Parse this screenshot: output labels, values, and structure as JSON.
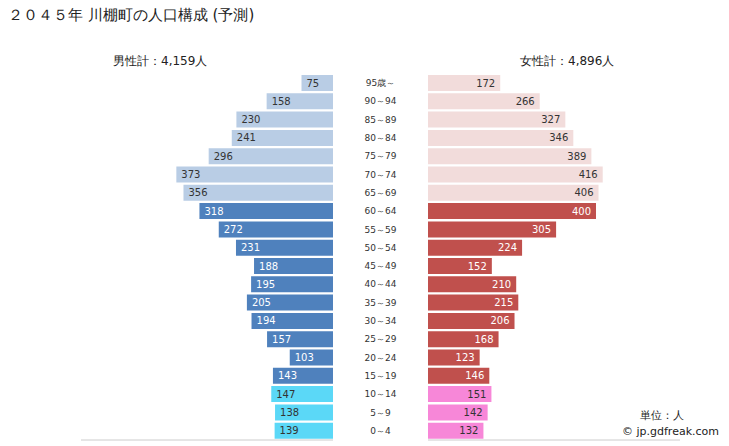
{
  "chart_data": {
    "type": "bar",
    "title": "２０４５年 川棚町の人口構成 (予測)",
    "orientation": "horizontal",
    "data_labels": true,
    "tick_labels": "y",
    "xlim": [
      0,
      600
    ],
    "categories": [
      "95歳～",
      "90～94",
      "85～89",
      "80～84",
      "75～79",
      "70～74",
      "65～69",
      "60～64",
      "55～59",
      "50～54",
      "45～49",
      "40～44",
      "35～39",
      "30～34",
      "25～29",
      "20～24",
      "15～19",
      "10～14",
      "5～9",
      "0～4"
    ],
    "series": [
      {
        "name": "男性計：4,159人",
        "values": [
          75,
          158,
          230,
          241,
          296,
          373,
          356,
          318,
          272,
          231,
          188,
          195,
          205,
          194,
          157,
          103,
          143,
          147,
          138,
          139
        ],
        "colors": [
          "#b9cde5",
          "#b9cde5",
          "#b9cde5",
          "#b9cde5",
          "#b9cde5",
          "#b9cde5",
          "#b9cde5",
          "#4f81bd",
          "#4f81bd",
          "#4f81bd",
          "#4f81bd",
          "#4f81bd",
          "#4f81bd",
          "#4f81bd",
          "#4f81bd",
          "#4f81bd",
          "#4f81bd",
          "#5bd8f7",
          "#5bd8f7",
          "#5bd8f7"
        ]
      },
      {
        "name": "女性計：4,896人",
        "values": [
          172,
          266,
          327,
          346,
          389,
          416,
          406,
          400,
          305,
          224,
          152,
          210,
          215,
          206,
          168,
          123,
          146,
          151,
          142,
          132
        ],
        "colors": [
          "#f2dcdb",
          "#f2dcdb",
          "#f2dcdb",
          "#f2dcdb",
          "#f2dcdb",
          "#f2dcdb",
          "#f2dcdb",
          "#c0504d",
          "#c0504d",
          "#c0504d",
          "#c0504d",
          "#c0504d",
          "#c0504d",
          "#c0504d",
          "#c0504d",
          "#c0504d",
          "#c0504d",
          "#f787d8",
          "#f787d8",
          "#f787d8"
        ]
      }
    ],
    "annotations": [
      "単位：人",
      "© jp.gdfreak.com"
    ]
  }
}
